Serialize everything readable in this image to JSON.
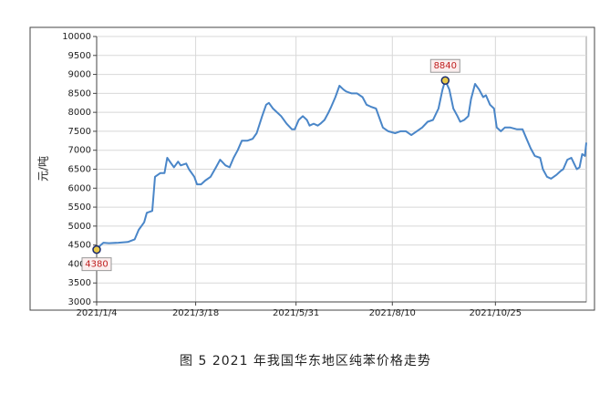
{
  "chart_data": {
    "type": "line",
    "y_label": "元/吨",
    "caption": "图 5 2021 年我国华东地区纯苯价格走势",
    "x": [
      "2021/1/4",
      "2021/1/7",
      "2021/1/9",
      "2021/1/13",
      "2021/1/20",
      "2021/1/27",
      "2021/2/1",
      "2021/2/4",
      "2021/2/8",
      "2021/2/10",
      "2021/2/14",
      "2021/2/16",
      "2021/2/20",
      "2021/2/23",
      "2021/2/25",
      "2021/2/28",
      "2021/3/2",
      "2021/3/5",
      "2021/3/7",
      "2021/3/11",
      "2021/3/13",
      "2021/3/17",
      "2021/3/19",
      "2021/3/22",
      "2021/3/25",
      "2021/3/29",
      "2021/4/2",
      "2021/4/5",
      "2021/4/9",
      "2021/4/12",
      "2021/4/15",
      "2021/4/18",
      "2021/4/21",
      "2021/4/25",
      "2021/4/29",
      "2021/5/2",
      "2021/5/6",
      "2021/5/9",
      "2021/5/11",
      "2021/5/14",
      "2021/5/17",
      "2021/5/20",
      "2021/5/24",
      "2021/5/28",
      "2021/5/30",
      "2021/6/2",
      "2021/6/5",
      "2021/6/8",
      "2021/6/10",
      "2021/6/13",
      "2021/6/16",
      "2021/6/18",
      "2021/6/21",
      "2021/6/24",
      "2021/6/26",
      "2021/6/29",
      "2021/7/2",
      "2021/7/5",
      "2021/7/7",
      "2021/7/11",
      "2021/7/15",
      "2021/7/19",
      "2021/7/22",
      "2021/7/25",
      "2021/7/29",
      "2021/8/1",
      "2021/8/3",
      "2021/8/7",
      "2021/8/12",
      "2021/8/16",
      "2021/8/20",
      "2021/8/24",
      "2021/8/28",
      "2021/9/1",
      "2021/9/5",
      "2021/9/9",
      "2021/9/13",
      "2021/9/16",
      "2021/9/18",
      "2021/9/21",
      "2021/9/24",
      "2021/9/27",
      "2021/9/29",
      "2021/10/2",
      "2021/10/5",
      "2021/10/7",
      "2021/10/10",
      "2021/10/13",
      "2021/10/16",
      "2021/10/18",
      "2021/10/21",
      "2021/10/24",
      "2021/10/26",
      "2021/10/29",
      "2021/11/1",
      "2021/11/5",
      "2021/11/10",
      "2021/11/14",
      "2021/11/17",
      "2021/11/20",
      "2021/11/23",
      "2021/11/27",
      "2021/11/29",
      "2021/12/2",
      "2021/12/5",
      "2021/12/9",
      "2021/12/12",
      "2021/12/14",
      "2021/12/17",
      "2021/12/20",
      "2021/12/22",
      "2021/12/24",
      "2021/12/26",
      "2021/12/28",
      "2021/12/30",
      "2021/12/31"
    ],
    "values": [
      4380,
      4500,
      4560,
      4550,
      4560,
      4580,
      4650,
      4900,
      5100,
      5350,
      5400,
      6300,
      6400,
      6400,
      6800,
      6650,
      6550,
      6700,
      6600,
      6650,
      6500,
      6300,
      6100,
      6100,
      6200,
      6300,
      6550,
      6750,
      6600,
      6550,
      6800,
      7000,
      7250,
      7250,
      7300,
      7450,
      7900,
      8200,
      8250,
      8100,
      8000,
      7900,
      7700,
      7550,
      7550,
      7800,
      7900,
      7800,
      7650,
      7700,
      7650,
      7700,
      7800,
      8000,
      8150,
      8400,
      8700,
      8600,
      8550,
      8500,
      8500,
      8400,
      8200,
      8150,
      8100,
      7800,
      7600,
      7500,
      7450,
      7500,
      7500,
      7400,
      7500,
      7600,
      7750,
      7800,
      8100,
      8600,
      8840,
      8600,
      8100,
      7900,
      7750,
      7800,
      7900,
      8350,
      8750,
      8600,
      8400,
      8450,
      8200,
      8100,
      7600,
      7500,
      7600,
      7600,
      7550,
      7550,
      7300,
      7050,
      6850,
      6800,
      6500,
      6300,
      6250,
      6350,
      6450,
      6500,
      6750,
      6800,
      6650,
      6500,
      6550,
      6900,
      6850,
      7200
    ],
    "color": "#4a86c8",
    "annotations": [
      {
        "x": "2021/9/18",
        "value": 8840
      },
      {
        "x": "2021/1/4",
        "value": 4380
      }
    ],
    "xlim": [
      "2021/1/4",
      "2021/12/31"
    ],
    "xticks": [
      "2021/1/4",
      "2021/3/18",
      "2021/5/31",
      "2021/8/10",
      "2021/10/25"
    ],
    "ylim": [
      3000,
      10000
    ],
    "yticks": [
      3000,
      3500,
      4000,
      4500,
      5000,
      5500,
      6000,
      6500,
      7000,
      7500,
      8000,
      8500,
      9000,
      9500,
      10000
    ],
    "grid": true
  }
}
